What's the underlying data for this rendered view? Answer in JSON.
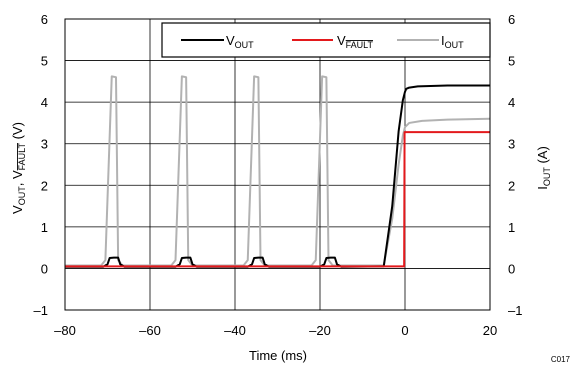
{
  "chart_data": {
    "type": "line",
    "code_label": "C017",
    "xlabel": "Time (ms)",
    "ylabel_left": {
      "main": "V",
      "sub1": "OUT",
      "sep": ", V",
      "sub2": "FAULT",
      "unit": " (V)"
    },
    "ylabel_right": {
      "main": "I",
      "sub": "OUT",
      "unit": " (A)"
    },
    "xlim": [
      -80,
      20
    ],
    "ylim_left": [
      -1,
      6
    ],
    "ylim_right": [
      -1,
      6
    ],
    "x_ticks": [
      -80,
      -60,
      -40,
      -20,
      0,
      20
    ],
    "x_tick_labels": [
      "–80",
      "–60",
      "–40",
      "–20",
      "0",
      "20"
    ],
    "y_ticks": [
      -1,
      0,
      1,
      2,
      3,
      4,
      5,
      6
    ],
    "y_tick_labels": [
      "–1",
      "0",
      "1",
      "2",
      "3",
      "4",
      "5",
      "6"
    ],
    "grid": true,
    "legend_position": "top-right",
    "series": [
      {
        "name_main": "V",
        "name_sub": "OUT",
        "axis": "left",
        "color": "#000000",
        "x": [
          -80,
          -71,
          -70,
          -69.5,
          -68.5,
          -67.5,
          -67,
          -66,
          -54,
          -53,
          -52.5,
          -51.5,
          -50.5,
          -50,
          -49,
          -37,
          -36,
          -35.5,
          -34.5,
          -33.5,
          -33,
          -32,
          -20,
          -19,
          -18.5,
          -17.5,
          -16.5,
          -16,
          -15,
          -5,
          -3,
          -1.5,
          -0.5,
          0,
          0.3,
          1,
          3,
          10,
          20
        ],
        "y": [
          0.04,
          0.04,
          0.1,
          0.25,
          0.26,
          0.26,
          0.1,
          0.04,
          0.04,
          0.1,
          0.25,
          0.26,
          0.26,
          0.1,
          0.04,
          0.04,
          0.1,
          0.25,
          0.26,
          0.26,
          0.1,
          0.04,
          0.04,
          0.1,
          0.25,
          0.26,
          0.26,
          0.1,
          0.04,
          0.05,
          1.5,
          3.3,
          4.05,
          4.25,
          4.32,
          4.35,
          4.38,
          4.4,
          4.4
        ]
      },
      {
        "name_main": "V",
        "name_sub": "FAULT",
        "axis": "left",
        "color": "#e3191c",
        "x": [
          -80,
          -0.2,
          -0.1,
          20
        ],
        "y": [
          0.05,
          0.05,
          3.28,
          3.28
        ]
      },
      {
        "name_main": "I",
        "name_sub": "OUT",
        "axis": "right",
        "color": "#b2b2b2",
        "x": [
          -80,
          -71.5,
          -70.5,
          -69,
          -68,
          -67.5,
          -66.5,
          -55,
          -54,
          -52.5,
          -51.5,
          -51,
          -50,
          -38,
          -37,
          -35.5,
          -34.5,
          -34,
          -33,
          -22,
          -21,
          -19.5,
          -18.5,
          -18,
          -17,
          -5,
          -3,
          -1.5,
          -0.5,
          0,
          1,
          4,
          10,
          20
        ],
        "y": [
          0.07,
          0.07,
          0.2,
          4.62,
          4.6,
          0.2,
          0.07,
          0.07,
          0.2,
          4.62,
          4.6,
          0.2,
          0.07,
          0.07,
          0.2,
          4.62,
          4.6,
          0.2,
          0.07,
          0.07,
          0.2,
          4.62,
          4.6,
          0.2,
          0.07,
          0.07,
          1.2,
          2.5,
          3.2,
          3.4,
          3.5,
          3.55,
          3.58,
          3.6
        ]
      }
    ]
  }
}
